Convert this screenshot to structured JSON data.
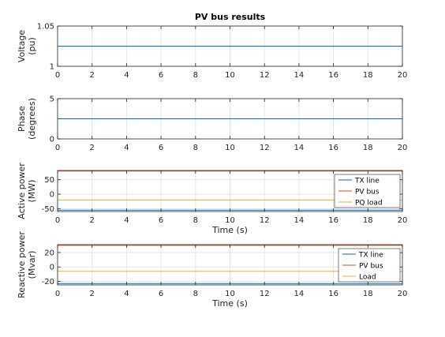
{
  "chart_data": [
    {
      "type": "line",
      "title": "PV bus results",
      "xlabel": "",
      "ylabel": [
        "Voltage",
        "(pu)"
      ],
      "xlim": [
        0,
        20
      ],
      "ylim": [
        1,
        1.05
      ],
      "xticks": [
        "0",
        "2",
        "4",
        "6",
        "8",
        "10",
        "12",
        "14",
        "16",
        "18",
        "20"
      ],
      "yticks": [
        {
          "v": 1,
          "label": "1"
        },
        {
          "v": 1.05,
          "label": "1.05"
        }
      ],
      "grid": true,
      "legend": null,
      "series": [
        {
          "color": "#0072BD",
          "x": [
            0,
            20
          ],
          "y": [
            1.025,
            1.025
          ]
        }
      ]
    },
    {
      "type": "line",
      "title": "",
      "xlabel": "",
      "ylabel": [
        "Phase",
        "(degrees)"
      ],
      "xlim": [
        0,
        20
      ],
      "ylim": [
        0,
        5
      ],
      "xticks": [
        "0",
        "2",
        "4",
        "6",
        "8",
        "10",
        "12",
        "14",
        "16",
        "18",
        "20"
      ],
      "yticks": [
        {
          "v": 0,
          "label": "0"
        },
        {
          "v": 5,
          "label": "5"
        }
      ],
      "grid": true,
      "legend": null,
      "series": [
        {
          "color": "#0072BD",
          "x": [
            0,
            20
          ],
          "y": [
            2.5,
            2.5
          ]
        }
      ]
    },
    {
      "type": "line",
      "title": "",
      "xlabel": "Time (s)",
      "ylabel": [
        "Active power",
        "(MW)"
      ],
      "xlim": [
        0,
        20
      ],
      "ylim": [
        -60,
        82
      ],
      "xticks": [
        "0",
        "2",
        "4",
        "6",
        "8",
        "10",
        "12",
        "14",
        "16",
        "18",
        "20"
      ],
      "yticks": [
        {
          "v": -50,
          "label": "-50"
        },
        {
          "v": 0,
          "label": "0"
        },
        {
          "v": 50,
          "label": "50"
        }
      ],
      "grid": true,
      "legend": "bottom-right",
      "series": [
        {
          "name": "TX line",
          "color": "#0072BD",
          "x": [
            0,
            20
          ],
          "y": [
            -55,
            -55
          ]
        },
        {
          "name": "PV bus",
          "color": "#D95319",
          "x": [
            0,
            20
          ],
          "y": [
            80,
            80
          ]
        },
        {
          "name": "PQ load",
          "color": "#EDB120",
          "x": [
            0,
            20
          ],
          "y": [
            -20,
            -20
          ]
        }
      ]
    },
    {
      "type": "line",
      "title": "",
      "xlabel": "Time (s)",
      "ylabel": [
        "Reactive power",
        "(Mvar)"
      ],
      "xlim": [
        0,
        20
      ],
      "ylim": [
        -25,
        31
      ],
      "xticks": [
        "0",
        "2",
        "4",
        "6",
        "8",
        "10",
        "12",
        "14",
        "16",
        "18",
        "20"
      ],
      "yticks": [
        {
          "v": -20,
          "label": "-20"
        },
        {
          "v": 0,
          "label": "0"
        },
        {
          "v": 20,
          "label": "20"
        }
      ],
      "grid": true,
      "legend": "top-right",
      "series": [
        {
          "name": "TX line",
          "color": "#0072BD",
          "x": [
            0,
            20
          ],
          "y": [
            -23,
            -23
          ]
        },
        {
          "name": "PV bus",
          "color": "#D95319",
          "x": [
            0,
            20
          ],
          "y": [
            30,
            30
          ]
        },
        {
          "name": "Load",
          "color": "#EDB120",
          "x": [
            0,
            20
          ],
          "y": [
            -6,
            -6
          ]
        }
      ]
    }
  ]
}
